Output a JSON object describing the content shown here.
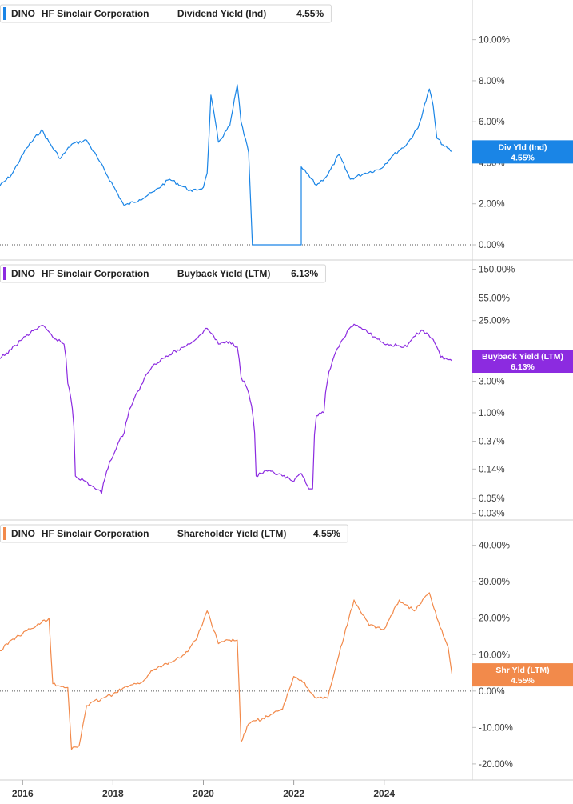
{
  "chart_data": [
    {
      "type": "line",
      "ticker": "DINO",
      "company": "HF Sinclair Corporation",
      "metric": "Dividend Yield (Ind)",
      "latest": "4.55%",
      "tag_label": "Div Yld (Ind)",
      "tag_value": "4.55%",
      "color": "#1a85e6",
      "scale": "linear",
      "ylim": [
        0,
        11
      ],
      "y_ticks": [
        0,
        2,
        4,
        6,
        8,
        10
      ],
      "y_tick_labels": [
        "0.00%",
        "2.00%",
        "4.00%",
        "6.00%",
        "8.00%",
        "10.00%"
      ],
      "zero_line": 0,
      "x": [
        "2015-06",
        "2015-10",
        "2016-02",
        "2016-06",
        "2016-08",
        "2016-11",
        "2017-02",
        "2017-06",
        "2017-09",
        "2018-01",
        "2018-04",
        "2018-08",
        "2018-12",
        "2019-04",
        "2019-07",
        "2019-10",
        "2020-01",
        "2020-02",
        "2020-03",
        "2020-05",
        "2020-08",
        "2020-10",
        "2020-11",
        "2021-01",
        "2021-02",
        "2021-02",
        "2022-03",
        "2022-03",
        "2022-07",
        "2022-10",
        "2023-01",
        "2023-04",
        "2023-08",
        "2023-12",
        "2024-03",
        "2024-07",
        "2024-10",
        "2025-01",
        "2025-02",
        "2025-03",
        "2025-05",
        "2025-07"
      ],
      "values": [
        2.7,
        3.4,
        4.7,
        5.6,
        5.0,
        4.2,
        4.9,
        5.1,
        4.2,
        2.9,
        1.9,
        2.2,
        2.6,
        3.2,
        2.9,
        2.6,
        2.8,
        3.5,
        7.3,
        5.0,
        5.8,
        7.8,
        6.0,
        4.5,
        0.0,
        0.0,
        0.0,
        3.8,
        2.9,
        3.4,
        4.4,
        3.2,
        3.5,
        3.7,
        4.3,
        4.9,
        5.7,
        7.6,
        6.8,
        5.2,
        4.8,
        4.55
      ]
    },
    {
      "type": "line",
      "ticker": "DINO",
      "company": "HF Sinclair Corporation",
      "metric": "Buyback Yield (LTM)",
      "latest": "6.13%",
      "tag_label": "Buyback Yield (LTM)",
      "tag_value": "6.13%",
      "color": "#8c2be0",
      "scale": "log",
      "ylim": [
        0.025,
        180
      ],
      "y_ticks": [
        0.03,
        0.05,
        0.14,
        0.37,
        1.0,
        3.0,
        25.0,
        55.0,
        150.0
      ],
      "y_tick_labels": [
        "0.03%",
        "0.05%",
        "0.14%",
        "0.37%",
        "1.00%",
        "3.00%",
        "25.00%",
        "55.00%",
        "150.00%"
      ],
      "x": [
        "2015-06",
        "2015-10",
        "2016-03",
        "2016-06",
        "2016-09",
        "2016-12",
        "2017-01",
        "2017-03",
        "2017-07",
        "2017-10",
        "2018-01",
        "2018-04",
        "2018-08",
        "2018-12",
        "2019-04",
        "2019-08",
        "2019-11",
        "2020-02",
        "2020-05",
        "2020-08",
        "2020-10",
        "2020-11",
        "2021-01",
        "2021-03",
        "2021-06",
        "2021-10",
        "2022-01",
        "2022-03",
        "2022-05",
        "2022-06",
        "2022-07",
        "2022-09",
        "2023-01",
        "2023-05",
        "2023-09",
        "2024-01",
        "2024-07",
        "2024-11",
        "2025-02",
        "2025-04",
        "2025-07"
      ],
      "values": [
        5.8,
        9.0,
        16,
        21,
        14,
        11,
        2.8,
        0.11,
        0.08,
        0.06,
        0.22,
        0.5,
        2.2,
        5.5,
        7.5,
        10,
        13,
        19,
        11,
        12,
        10,
        3.5,
        2.0,
        0.11,
        0.13,
        0.11,
        0.09,
        0.12,
        0.07,
        0.07,
        0.9,
        1.0,
        10,
        22,
        16,
        11,
        10,
        18,
        13,
        7,
        6.13
      ]
    },
    {
      "type": "line",
      "ticker": "DINO",
      "company": "HF Sinclair Corporation",
      "metric": "Shareholder Yield (LTM)",
      "latest": "4.55%",
      "tag_label": "Shr Yld (LTM)",
      "tag_value": "4.55%",
      "color": "#f28a4b",
      "scale": "linear",
      "ylim": [
        -22,
        43
      ],
      "y_ticks": [
        -20,
        -10,
        0,
        10,
        20,
        30,
        40
      ],
      "y_tick_labels": [
        "-20.00%",
        "-10.00%",
        "0.00%",
        "10.00%",
        "20.00%",
        "30.00%",
        "40.00%"
      ],
      "zero_line": 0,
      "x": [
        "2015-06",
        "2015-10",
        "2016-03",
        "2016-08",
        "2016-09",
        "2017-01",
        "2017-02",
        "2017-04",
        "2017-06",
        "2017-10",
        "2018-01",
        "2018-04",
        "2018-08",
        "2018-12",
        "2019-04",
        "2019-08",
        "2019-11",
        "2020-02",
        "2020-05",
        "2020-08",
        "2020-10",
        "2020-11",
        "2021-01",
        "2021-06",
        "2021-10",
        "2022-01",
        "2022-03",
        "2022-07",
        "2022-10",
        "2023-01",
        "2023-05",
        "2023-09",
        "2024-01",
        "2024-05",
        "2024-09",
        "2025-01",
        "2025-03",
        "2025-06",
        "2025-07"
      ],
      "values": [
        10,
        14,
        17,
        20,
        2,
        1,
        -16,
        -15,
        -4,
        -2,
        -1,
        1,
        2,
        6,
        8,
        10,
        14,
        22,
        13,
        14,
        14,
        -14,
        -9,
        -7,
        -5,
        4,
        3,
        -2,
        -2,
        10,
        25,
        18,
        17,
        25,
        22,
        27,
        20,
        12,
        4.55
      ]
    }
  ],
  "x_axis": {
    "ticks": [
      "2016",
      "2018",
      "2020",
      "2022",
      "2024"
    ]
  }
}
